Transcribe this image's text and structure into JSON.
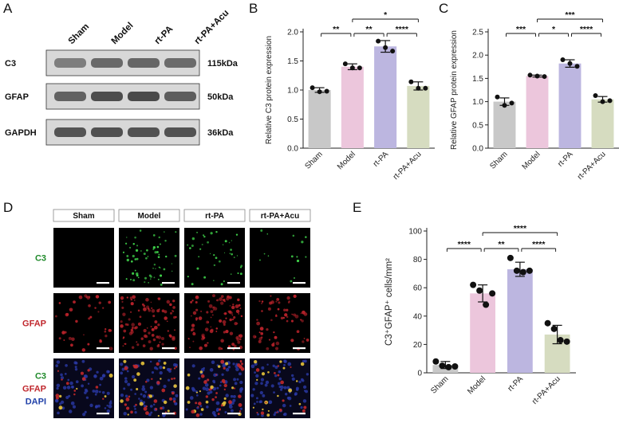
{
  "panels": {
    "A": {
      "letter": "A",
      "lanes": [
        "Sham",
        "Model",
        "rt-PA",
        "rt-PA+Acu"
      ],
      "blots": [
        {
          "label": "C3",
          "size": "115kDa",
          "intensity": [
            0.55,
            0.7,
            0.72,
            0.68
          ]
        },
        {
          "label": "GFAP",
          "size": "50kDa",
          "intensity": [
            0.75,
            0.9,
            0.92,
            0.78
          ]
        },
        {
          "label": "GAPDH",
          "size": "36kDa",
          "intensity": [
            0.85,
            0.88,
            0.86,
            0.87
          ]
        }
      ]
    },
    "B": {
      "letter": "B",
      "chart_data": {
        "type": "bar",
        "categories": [
          "Sham",
          "Model",
          "rt-PA",
          "rt-PA+Acu"
        ],
        "values": [
          1.0,
          1.4,
          1.75,
          1.07
        ],
        "sd": [
          0.04,
          0.05,
          0.1,
          0.07
        ],
        "points": [
          [
            1.04,
            0.97,
            0.98
          ],
          [
            1.45,
            1.38,
            1.38
          ],
          [
            1.84,
            1.73,
            1.67
          ],
          [
            1.14,
            1.03,
            1.03
          ]
        ],
        "colors": [
          "#c8c8c8",
          "#ecc6dc",
          "#bcb6e0",
          "#d6dcc0"
        ],
        "ylabel": "Relative C3 protein expression",
        "ylim": [
          0,
          2.0
        ],
        "yticks": [
          "0.0",
          "0.5",
          "1.0",
          "1.5",
          "2.0"
        ],
        "tickvals": [
          0,
          0.5,
          1.0,
          1.5,
          2.0
        ],
        "sig": [
          {
            "from": 0,
            "to": 1,
            "label": "**",
            "level": 1
          },
          {
            "from": 1,
            "to": 2,
            "label": "**",
            "level": 1
          },
          {
            "from": 2,
            "to": 3,
            "label": "****",
            "level": 1
          },
          {
            "from": 1,
            "to": 3,
            "label": "*",
            "level": 2
          }
        ]
      }
    },
    "C": {
      "letter": "C",
      "chart_data": {
        "type": "bar",
        "categories": [
          "Sham",
          "Model",
          "rt-PA",
          "rt-PA+Acu"
        ],
        "values": [
          1.0,
          1.55,
          1.82,
          1.05
        ],
        "sd": [
          0.08,
          0.02,
          0.08,
          0.06
        ],
        "points": [
          [
            1.1,
            0.92,
            0.97
          ],
          [
            1.57,
            1.55,
            1.54
          ],
          [
            1.9,
            1.82,
            1.76
          ],
          [
            1.13,
            1.0,
            1.02
          ]
        ],
        "colors": [
          "#c8c8c8",
          "#ecc6dc",
          "#bcb6e0",
          "#d6dcc0"
        ],
        "ylabel": "Relative GFAP protein expression",
        "ylim": [
          0,
          2.5
        ],
        "yticks": [
          "0.0",
          "0.5",
          "1.0",
          "1.5",
          "2.0",
          "2.5"
        ],
        "tickvals": [
          0,
          0.5,
          1.0,
          1.5,
          2.0,
          2.5
        ],
        "sig": [
          {
            "from": 0,
            "to": 1,
            "label": "***",
            "level": 1
          },
          {
            "from": 1,
            "to": 2,
            "label": "*",
            "level": 1
          },
          {
            "from": 2,
            "to": 3,
            "label": "****",
            "level": 1
          },
          {
            "from": 1,
            "to": 3,
            "label": "***",
            "level": 2
          }
        ]
      }
    },
    "D": {
      "letter": "D",
      "headers": [
        "Sham",
        "Model",
        "rt-PA",
        "rt-PA+Acu"
      ],
      "rows": [
        {
          "labels": [
            {
              "text": "C3",
              "color": "#1f8a2a"
            }
          ],
          "density": [
            0.0,
            0.9,
            0.6,
            0.2
          ],
          "stain": "green"
        },
        {
          "labels": [
            {
              "text": "GFAP",
              "color": "#c0272d"
            }
          ],
          "density": [
            0.35,
            0.85,
            0.95,
            0.55
          ],
          "stain": "red"
        },
        {
          "labels": [
            {
              "text": "C3",
              "color": "#1f8a2a"
            },
            {
              "text": "GFAP",
              "color": "#c0272d"
            },
            {
              "text": "DAPI",
              "color": "#2040a8"
            }
          ],
          "density": [
            0.3,
            0.8,
            0.9,
            0.5
          ],
          "stain": "merge"
        }
      ]
    },
    "E": {
      "letter": "E",
      "chart_data": {
        "type": "bar",
        "categories": [
          "Sham",
          "Model",
          "rt-PA",
          "rt-PA+Acu"
        ],
        "values": [
          5.5,
          56,
          73,
          27
        ],
        "sd": [
          2.5,
          6,
          5,
          6.5
        ],
        "points": [
          [
            8,
            5,
            4,
            4.5
          ],
          [
            62,
            58,
            48,
            56
          ],
          [
            81,
            72,
            71,
            72
          ],
          [
            35,
            31,
            23,
            22
          ]
        ],
        "colors": [
          "#c8c8c8",
          "#ecc6dc",
          "#bcb6e0",
          "#d6dcc0"
        ],
        "ylabel": "C3⁺GFAP⁺ cells/mm²",
        "ylim": [
          0,
          100
        ],
        "yticks": [
          "0",
          "20",
          "40",
          "60",
          "80",
          "100"
        ],
        "tickvals": [
          0,
          20,
          40,
          60,
          80,
          100
        ],
        "sig": [
          {
            "from": 0,
            "to": 1,
            "label": "****",
            "level": 1
          },
          {
            "from": 1,
            "to": 2,
            "label": "**",
            "level": 1
          },
          {
            "from": 2,
            "to": 3,
            "label": "****",
            "level": 1
          },
          {
            "from": 1,
            "to": 3,
            "label": "****",
            "level": 2
          }
        ]
      }
    }
  }
}
